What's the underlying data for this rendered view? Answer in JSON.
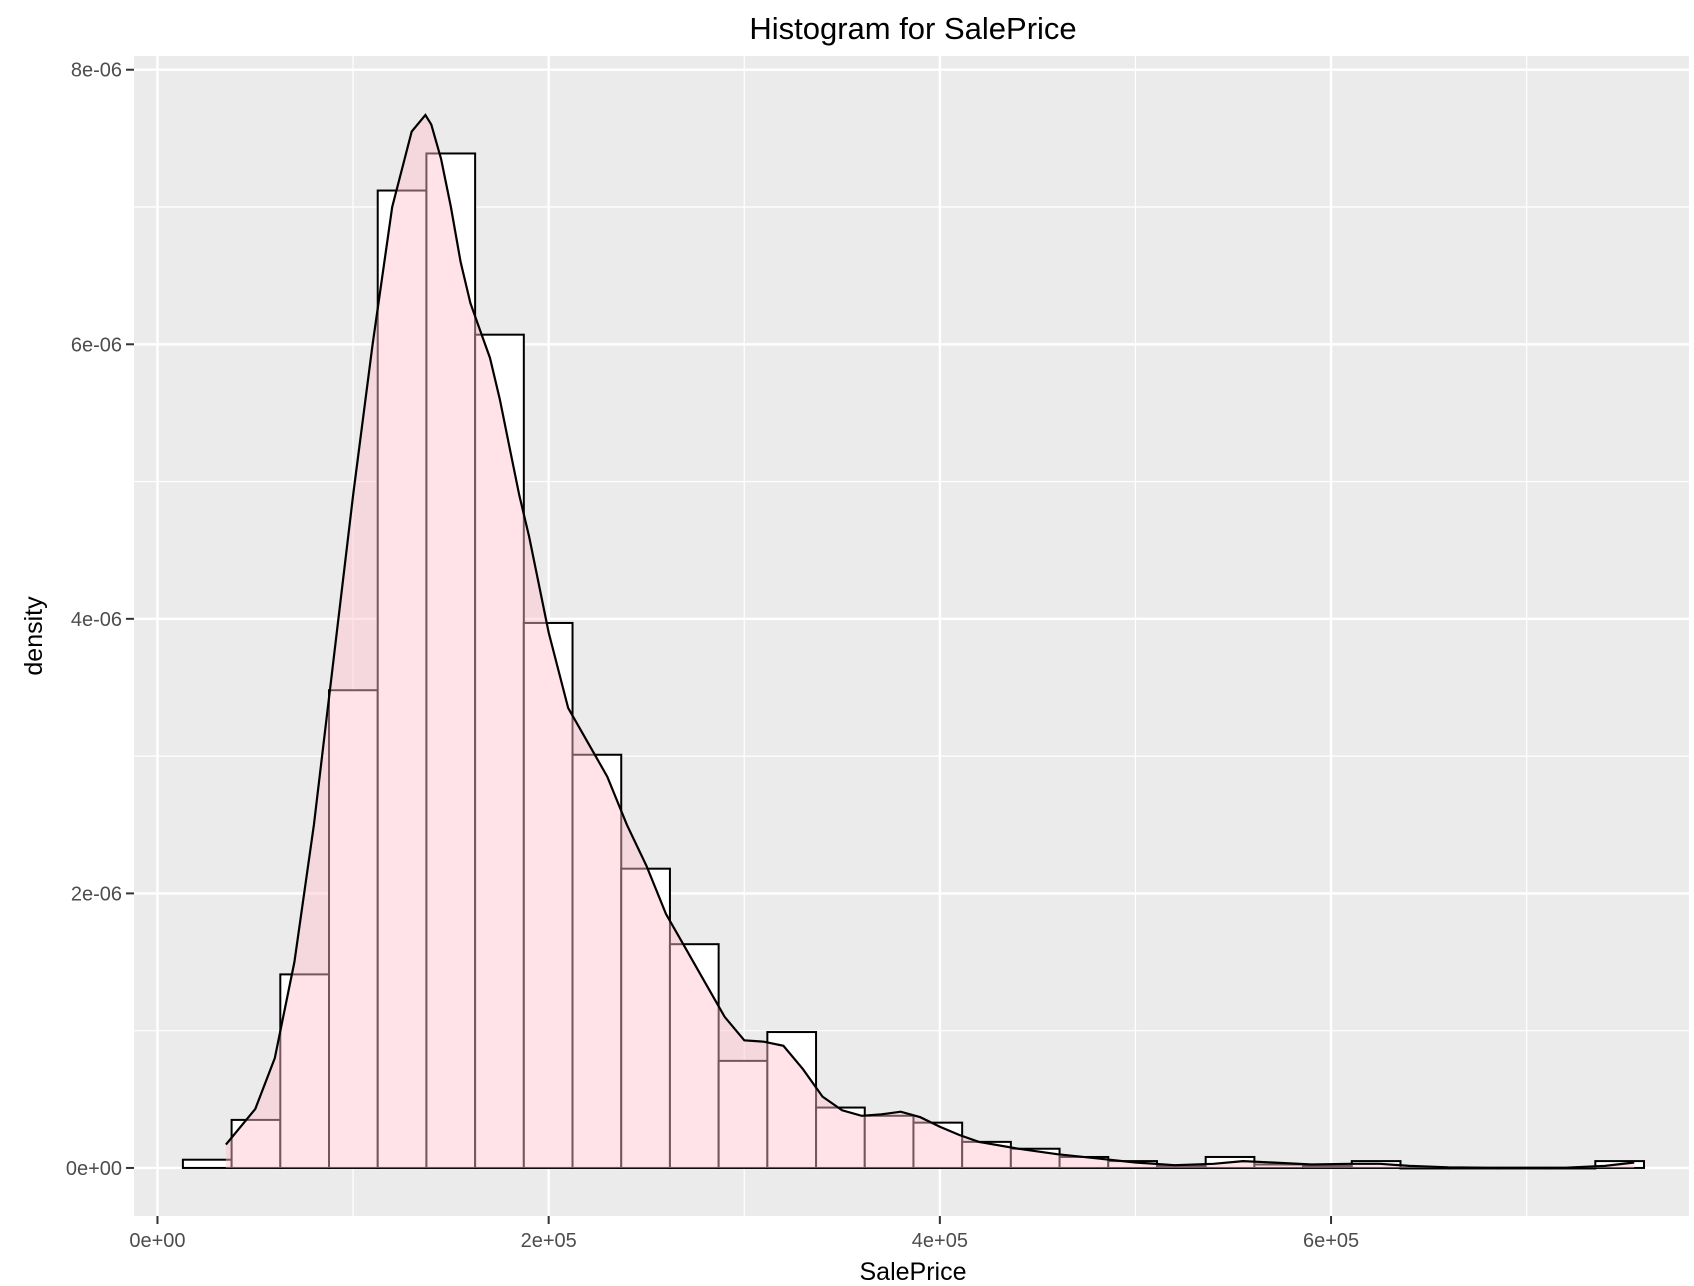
{
  "chart_data": {
    "type": "bar",
    "title": "Histogram for SalePrice",
    "xlabel": "SalePrice",
    "ylabel": "density",
    "xlim": [
      -12000,
      783000
    ],
    "ylim": [
      -3.5e-07,
      8.1e-06
    ],
    "x_ticks": [
      0,
      200000,
      400000,
      600000
    ],
    "x_tick_labels": [
      "0e+00",
      "2e+05",
      "4e+05",
      "6e+05"
    ],
    "y_ticks": [
      0,
      2e-06,
      4e-06,
      6e-06,
      8e-06
    ],
    "y_tick_labels": [
      "0e+00",
      "2e-06",
      "4e-06",
      "6e-06",
      "8e-06"
    ],
    "grid": true,
    "background_color": "#ebebeb",
    "grid_color": "#ffffff",
    "bar_fill": "#ffffff",
    "bar_stroke": "#000000",
    "density_fill": "#ffc0cb",
    "density_stroke": "#000000",
    "bin_width": 24900,
    "bins": [
      {
        "x0": 13000,
        "x1": 37900,
        "density": 6e-08
      },
      {
        "x0": 37900,
        "x1": 62800,
        "density": 3.5e-07
      },
      {
        "x0": 62800,
        "x1": 87700,
        "density": 1.41e-06
      },
      {
        "x0": 87700,
        "x1": 112600,
        "density": 3.48e-06
      },
      {
        "x0": 112600,
        "x1": 137500,
        "density": 7.12e-06
      },
      {
        "x0": 137500,
        "x1": 162400,
        "density": 7.39e-06
      },
      {
        "x0": 162400,
        "x1": 187300,
        "density": 6.07e-06
      },
      {
        "x0": 187300,
        "x1": 212200,
        "density": 3.97e-06
      },
      {
        "x0": 212200,
        "x1": 237100,
        "density": 3.01e-06
      },
      {
        "x0": 237100,
        "x1": 262000,
        "density": 2.18e-06
      },
      {
        "x0": 262000,
        "x1": 286900,
        "density": 1.63e-06
      },
      {
        "x0": 286900,
        "x1": 311800,
        "density": 7.8e-07
      },
      {
        "x0": 311800,
        "x1": 336700,
        "density": 9.9e-07
      },
      {
        "x0": 336700,
        "x1": 361600,
        "density": 4.4e-07
      },
      {
        "x0": 361600,
        "x1": 386500,
        "density": 3.8e-07
      },
      {
        "x0": 386500,
        "x1": 411400,
        "density": 3.3e-07
      },
      {
        "x0": 411400,
        "x1": 436300,
        "density": 1.9e-07
      },
      {
        "x0": 436300,
        "x1": 461200,
        "density": 1.4e-07
      },
      {
        "x0": 461200,
        "x1": 486100,
        "density": 8e-08
      },
      {
        "x0": 486100,
        "x1": 511000,
        "density": 5e-08
      },
      {
        "x0": 511000,
        "x1": 535900,
        "density": 1.5e-08
      },
      {
        "x0": 535900,
        "x1": 560800,
        "density": 8e-08
      },
      {
        "x0": 560800,
        "x1": 585700,
        "density": 2.5e-08
      },
      {
        "x0": 585700,
        "x1": 610600,
        "density": 1.5e-08
      },
      {
        "x0": 610600,
        "x1": 635500,
        "density": 5e-08
      },
      {
        "x0": 635500,
        "x1": 660400,
        "density": 0
      },
      {
        "x0": 660400,
        "x1": 685300,
        "density": 0
      },
      {
        "x0": 685300,
        "x1": 710200,
        "density": 0
      },
      {
        "x0": 710200,
        "x1": 735100,
        "density": 0
      },
      {
        "x0": 735100,
        "x1": 760000,
        "density": 5e-08
      }
    ],
    "density_curve": {
      "x": [
        35000,
        50000,
        60000,
        70000,
        80000,
        90000,
        100000,
        110000,
        120000,
        130000,
        137000,
        140000,
        145000,
        150000,
        155000,
        160000,
        165000,
        170000,
        175000,
        180000,
        185000,
        190000,
        200000,
        210000,
        220000,
        230000,
        240000,
        250000,
        260000,
        270000,
        280000,
        290000,
        300000,
        310000,
        320000,
        330000,
        340000,
        350000,
        360000,
        370000,
        380000,
        390000,
        400000,
        410000,
        420000,
        440000,
        460000,
        480000,
        500000,
        520000,
        540000,
        555000,
        570000,
        590000,
        610000,
        625000,
        640000,
        660000,
        680000,
        700000,
        720000,
        740000,
        755000
      ],
      "y": [
        1.7e-07,
        4.3e-07,
        8e-07,
        1.5e-06,
        2.5e-06,
        3.7e-06,
        4.9e-06,
        6e-06,
        7e-06,
        7.55e-06,
        7.67e-06,
        7.6e-06,
        7.35e-06,
        7e-06,
        6.6e-06,
        6.3e-06,
        6.1e-06,
        5.9e-06,
        5.6e-06,
        5.25e-06,
        4.9e-06,
        4.6e-06,
        3.9e-06,
        3.35e-06,
        3.1e-06,
        2.85e-06,
        2.5e-06,
        2.2e-06,
        1.85e-06,
        1.6e-06,
        1.35e-06,
        1.1e-06,
        9.3e-07,
        9.2e-07,
        8.9e-07,
        7.2e-07,
        5.2e-07,
        4.2e-07,
        3.8e-07,
        3.9e-07,
        4.1e-07,
        3.7e-07,
        3e-07,
        2.4e-07,
        1.9e-07,
        1.4e-07,
        1e-07,
        7e-08,
        4e-08,
        2e-08,
        3e-08,
        5e-08,
        4e-08,
        2.5e-08,
        3e-08,
        3e-08,
        1.5e-08,
        5e-09,
        2e-09,
        2e-09,
        2e-09,
        1.5e-08,
        4e-08
      ]
    }
  }
}
